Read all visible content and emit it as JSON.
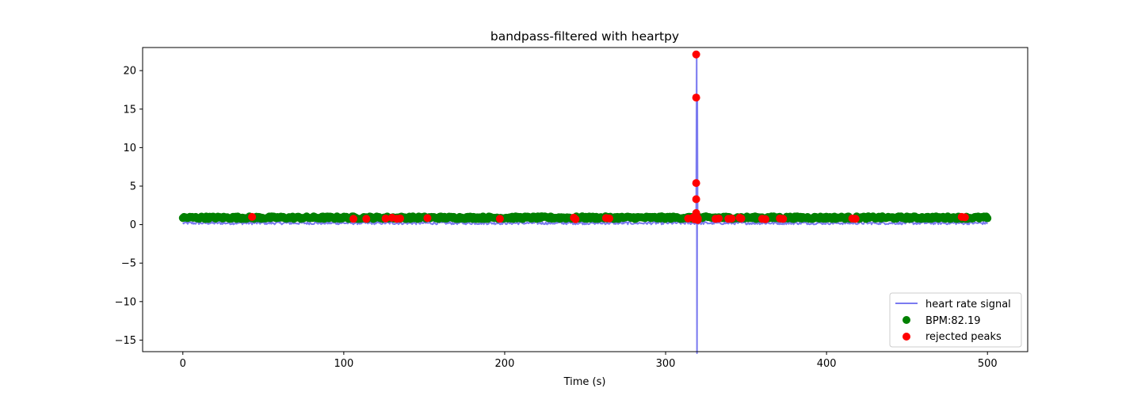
{
  "chart_data": {
    "type": "scatter",
    "title": "bandpass-filtered with heartpy",
    "xlabel": "Time (s)",
    "ylabel": "",
    "xlim": [
      -25,
      525
    ],
    "ylim": [
      -16.5,
      23
    ],
    "xticks": [
      0,
      100,
      200,
      300,
      400,
      500
    ],
    "yticks": [
      -15,
      -10,
      -5,
      0,
      5,
      10,
      15,
      20
    ],
    "xtick_labels": [
      "0",
      "100",
      "200",
      "300",
      "400",
      "500"
    ],
    "ytick_labels": [
      "−15",
      "−10",
      "−5",
      "0",
      "5",
      "10",
      "15",
      "20"
    ],
    "grid": false,
    "legend_position": "bottom-right",
    "colors": {
      "signal": "#7a7af0",
      "accepted": "#008000",
      "rejected": "#ff0000"
    },
    "series": [
      {
        "name": "heart rate signal",
        "kind": "line",
        "baseline_range": [
          0,
          500
        ],
        "baseline_value": 0.2,
        "spike": {
          "x": 319.5,
          "min": -16.7,
          "max": 22
        }
      },
      {
        "name": "BPM:82.19",
        "kind": "scatter",
        "x_range": [
          0,
          500
        ],
        "value": 0.9,
        "count": 690
      },
      {
        "name": "rejected peaks",
        "kind": "scatter",
        "points": [
          [
            43,
            1.0
          ],
          [
            106,
            0.75
          ],
          [
            114,
            0.75
          ],
          [
            126,
            0.8
          ],
          [
            130,
            0.9
          ],
          [
            133,
            0.75
          ],
          [
            135,
            0.8
          ],
          [
            152,
            0.85
          ],
          [
            197,
            0.75
          ],
          [
            243,
            0.9
          ],
          [
            244,
            0.7
          ],
          [
            263,
            0.85
          ],
          [
            265,
            0.8
          ],
          [
            314,
            0.8
          ],
          [
            317,
            0.9
          ],
          [
            318,
            0.7
          ],
          [
            319,
            22.1
          ],
          [
            319,
            16.5
          ],
          [
            319,
            5.4
          ],
          [
            319,
            3.3
          ],
          [
            319,
            1.5
          ],
          [
            319,
            1.2
          ],
          [
            320,
            0.8
          ],
          [
            320,
            0.6
          ],
          [
            331,
            0.75
          ],
          [
            333,
            0.8
          ],
          [
            339,
            0.75
          ],
          [
            341,
            0.8
          ],
          [
            346,
            0.9
          ],
          [
            347,
            0.8
          ],
          [
            360,
            0.75
          ],
          [
            362,
            0.7
          ],
          [
            371,
            0.8
          ],
          [
            373,
            0.75
          ],
          [
            416,
            0.8
          ],
          [
            418,
            0.75
          ],
          [
            484,
            1.0
          ],
          [
            486,
            0.95
          ]
        ]
      }
    ]
  }
}
